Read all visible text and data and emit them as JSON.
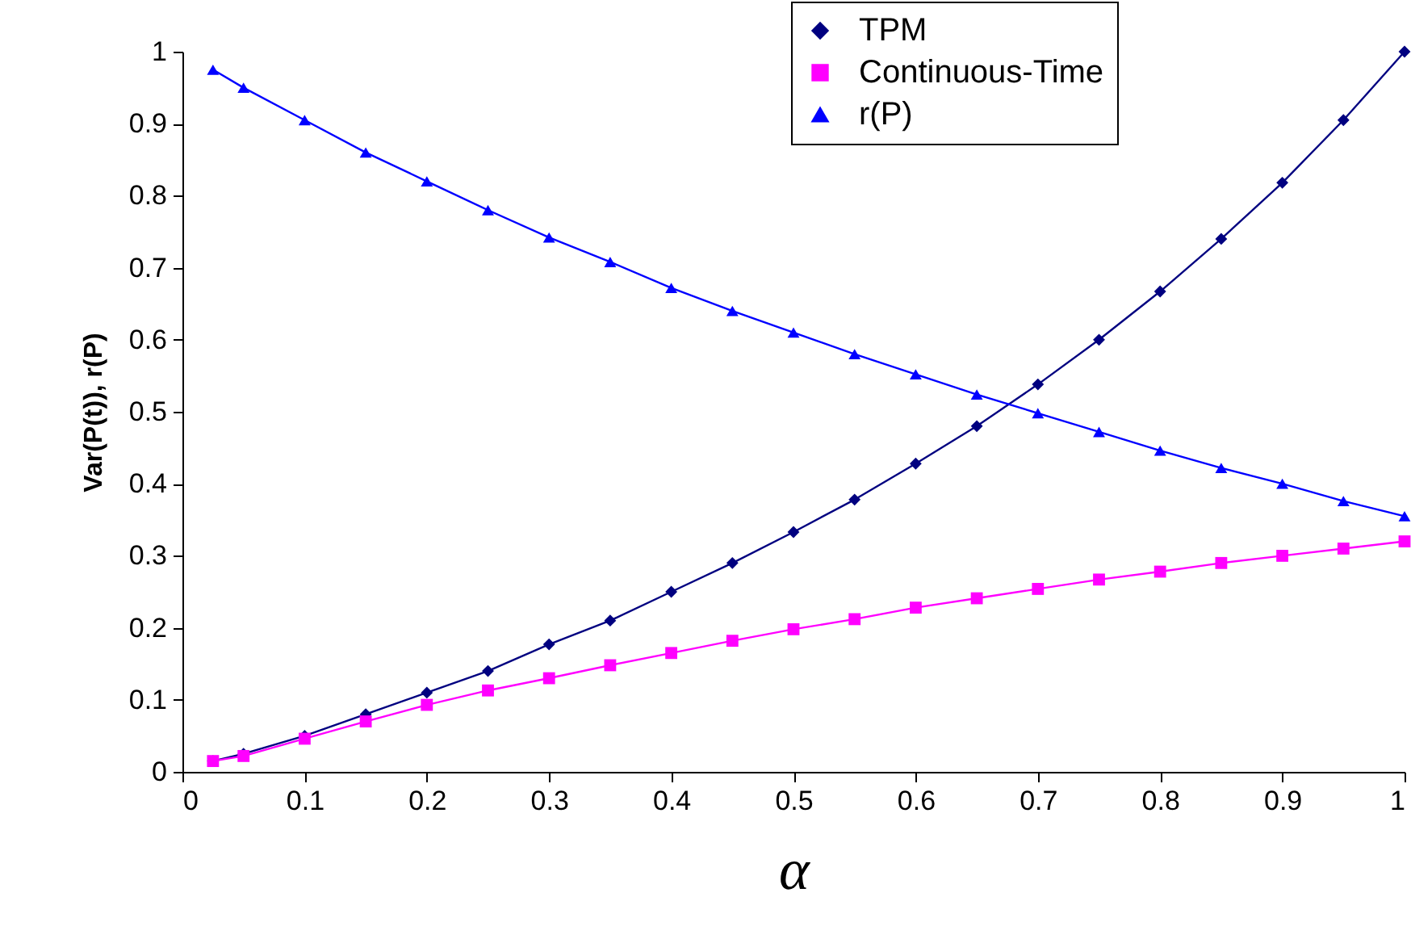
{
  "chart_data": {
    "type": "line",
    "xlabel": "α",
    "ylabel": "Var(P(t)), r(P)",
    "x": [
      0.025,
      0.05,
      0.1,
      0.15,
      0.2,
      0.25,
      0.3,
      0.35,
      0.4,
      0.45,
      0.5,
      0.55,
      0.6,
      0.65,
      0.7,
      0.75,
      0.8,
      0.85,
      0.9,
      0.95,
      1
    ],
    "series": [
      {
        "name": "TPM",
        "color": "#000080",
        "marker": "diamond",
        "values": [
          0.015,
          0.025,
          0.05,
          0.08,
          0.11,
          0.14,
          0.177,
          0.21,
          0.25,
          0.29,
          0.333,
          0.378,
          0.428,
          0.48,
          0.538,
          0.6,
          0.667,
          0.74,
          0.818,
          0.905,
          1
        ]
      },
      {
        "name": "Continuous-Time",
        "color": "#ff00ff",
        "marker": "square",
        "values": [
          0.015,
          0.022,
          0.046,
          0.07,
          0.093,
          0.113,
          0.13,
          0.148,
          0.165,
          0.182,
          0.198,
          0.212,
          0.228,
          0.241,
          0.254,
          0.267,
          0.278,
          0.29,
          0.3,
          0.31,
          0.32
        ]
      },
      {
        "name": "r(P)",
        "color": "#0000ff",
        "marker": "triangle",
        "values": [
          0.975,
          0.95,
          0.905,
          0.86,
          0.82,
          0.78,
          0.742,
          0.708,
          0.672,
          0.64,
          0.61,
          0.58,
          0.552,
          0.524,
          0.498,
          0.472,
          0.446,
          0.422,
          0.4,
          0.376,
          0.355
        ]
      }
    ],
    "xlim": [
      0,
      1
    ],
    "xticks": [
      0,
      0.1,
      0.2,
      0.3,
      0.4,
      0.5,
      0.6,
      0.7,
      0.8,
      0.9,
      1
    ],
    "ylim": [
      0,
      1
    ],
    "yticks": [
      0,
      0.1,
      0.2,
      0.3,
      0.4,
      0.5,
      0.6,
      0.7,
      0.8,
      0.9,
      1
    ],
    "legend": "top right",
    "grid": false,
    "line_style": "solid"
  }
}
